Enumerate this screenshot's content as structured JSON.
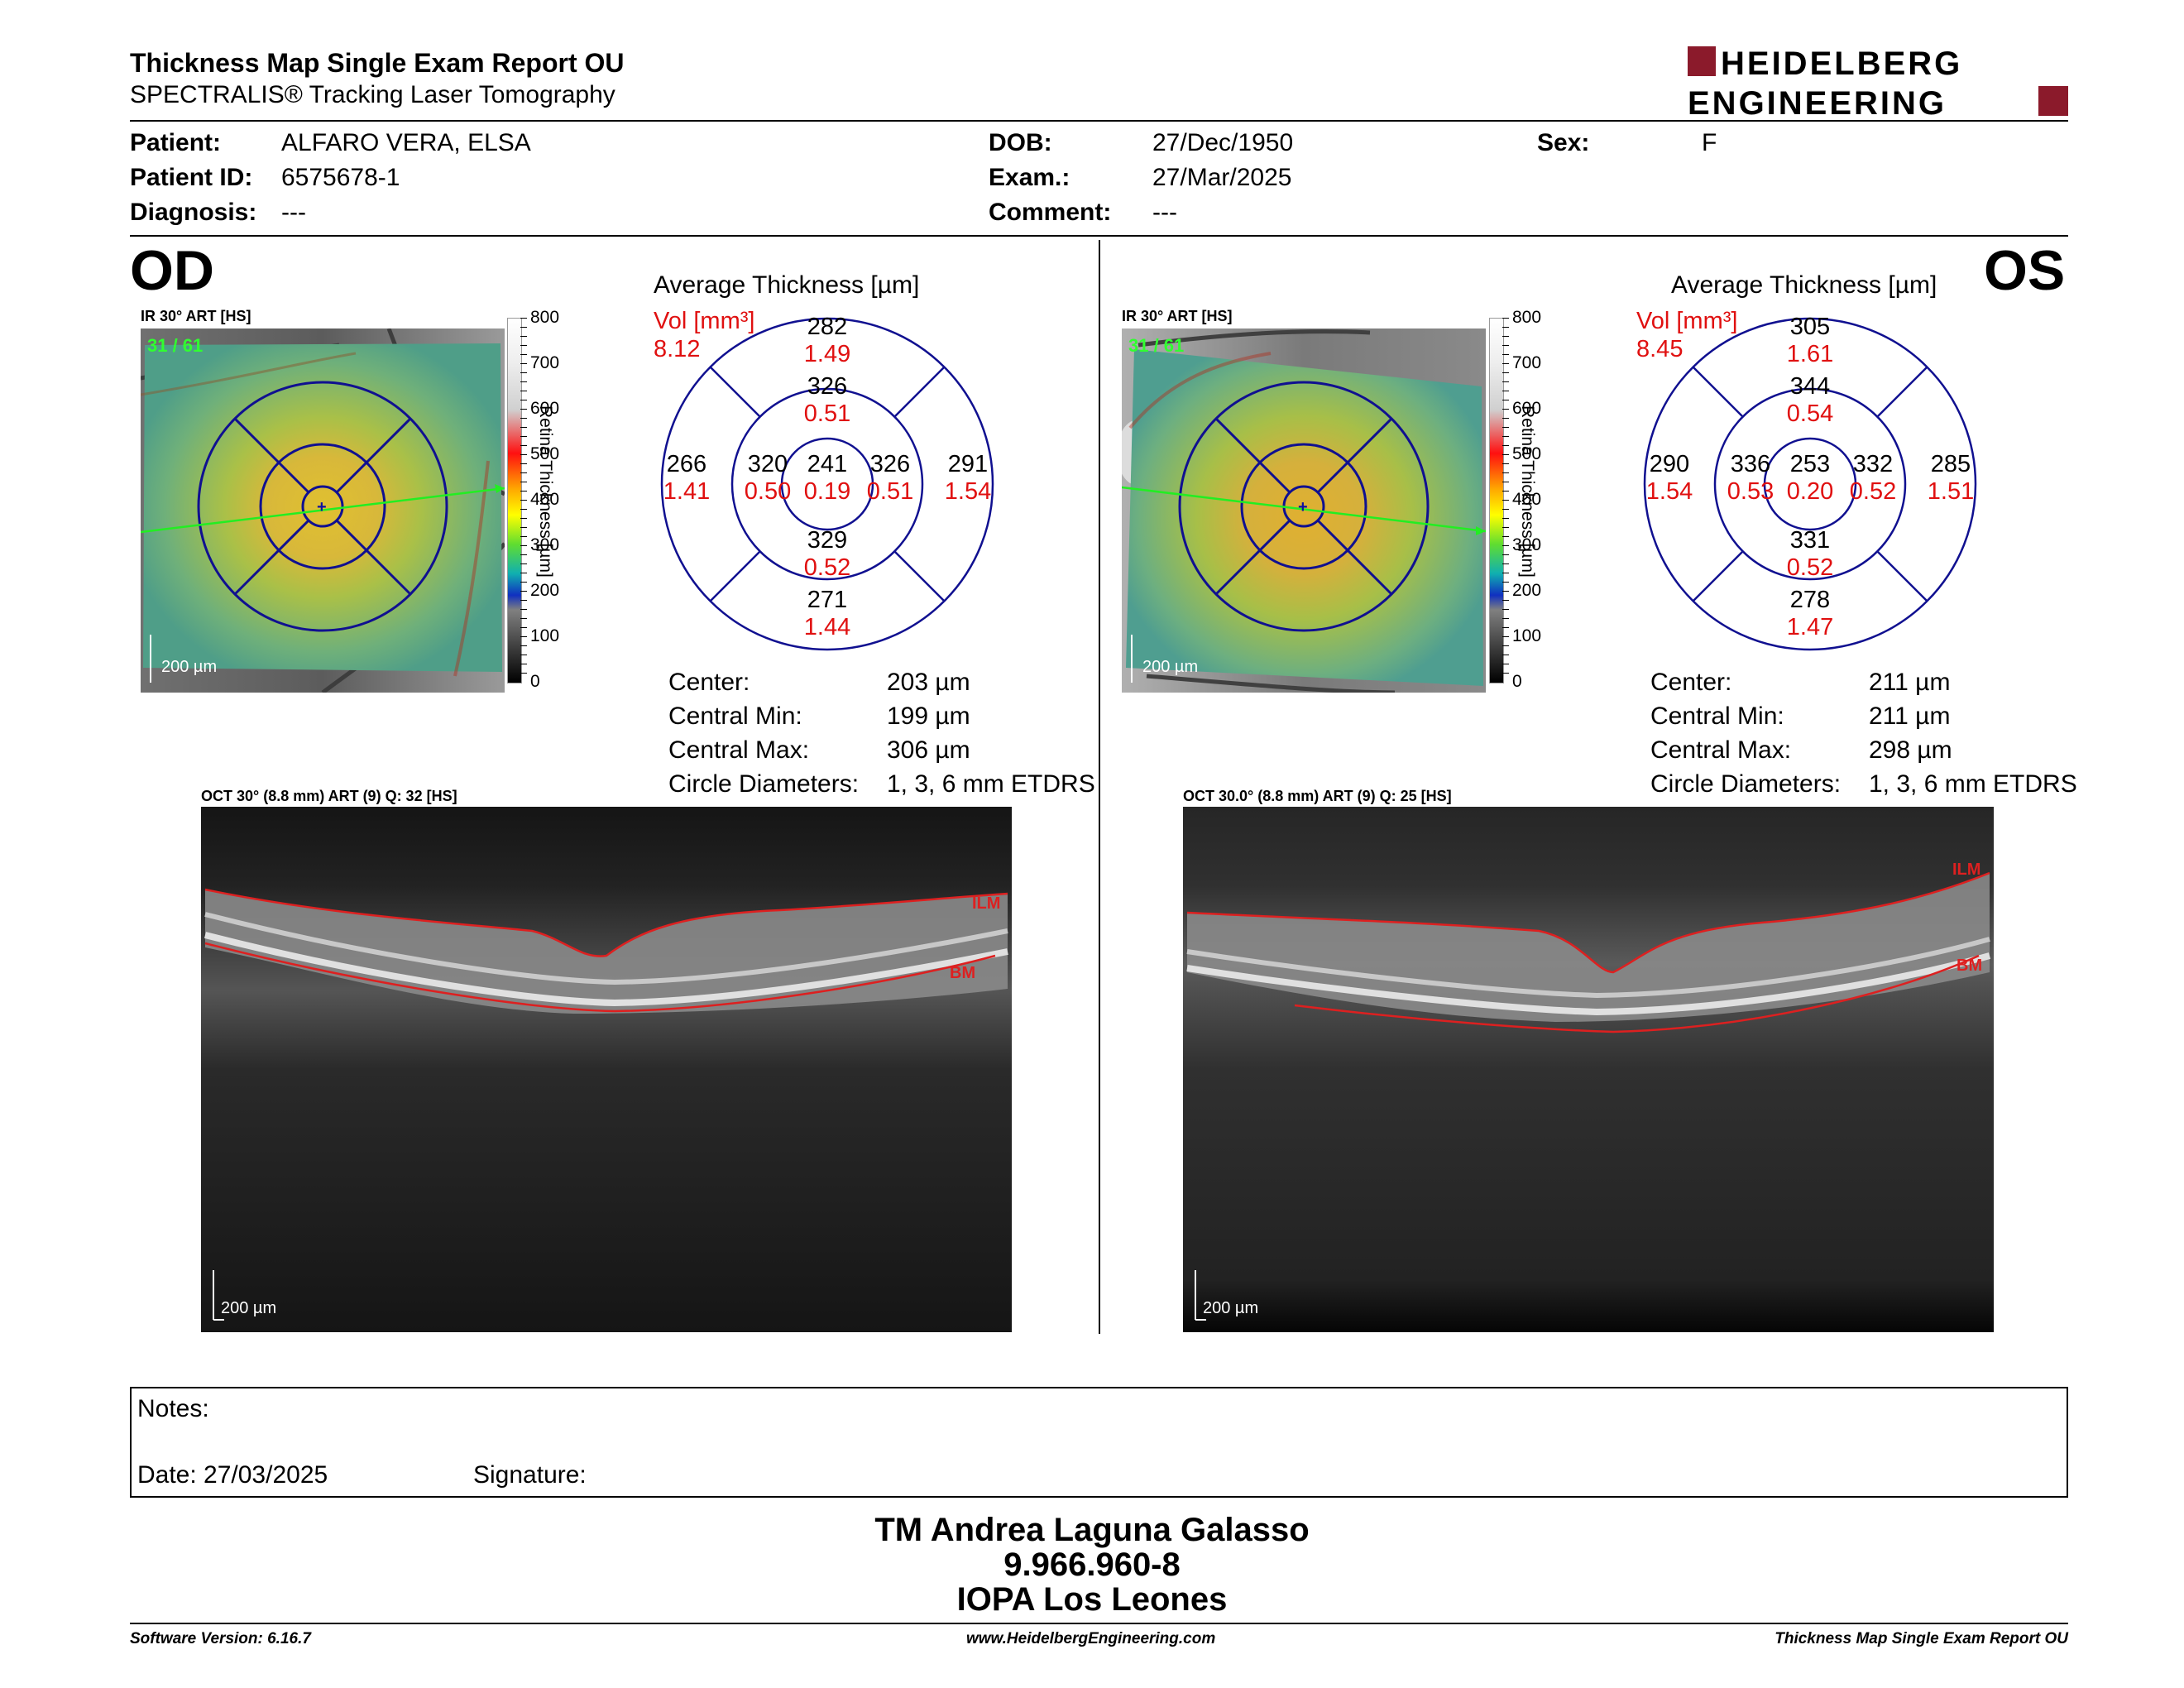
{
  "header": {
    "title": "Thickness Map Single Exam Report OU",
    "subtitle": "SPECTRALIS® Tracking Laser Tomography",
    "logo_line1": "HEIDELBERG",
    "logo_line2": "ENGINEERING",
    "brand_color": "#8b1a2b"
  },
  "patient": {
    "patient_label": "Patient:",
    "patient_value": "ALFARO VERA, ELSA",
    "id_label": "Patient ID:",
    "id_value": "6575678-1",
    "diag_label": "Diagnosis:",
    "diag_value": "---",
    "dob_label": "DOB:",
    "dob_value": "27/Dec/1950",
    "exam_label": "Exam.:",
    "exam_value": "27/Mar/2025",
    "comment_label": "Comment:",
    "comment_value": "---",
    "sex_label": "Sex:",
    "sex_value": "F"
  },
  "od": {
    "eye": "OD",
    "ir_caption": "IR 30° ART [HS]",
    "frames": "31 / 61",
    "scale": "200 µm",
    "colorbar_ticks": [
      "800",
      "700",
      "600",
      "500",
      "400",
      "300",
      "200",
      "100",
      "0"
    ],
    "colorbar_label": "Retina Thickness [µm]",
    "avg_title": "Average Thickness [µm]",
    "vol_label": "Vol [mm³]",
    "vol_value": "8.12",
    "grid": {
      "center": [
        "241",
        "0.19"
      ],
      "inner_sup": [
        "326",
        "0.51"
      ],
      "inner_inf": [
        "329",
        "0.52"
      ],
      "inner_left": [
        "320",
        "0.50"
      ],
      "inner_right": [
        "326",
        "0.51"
      ],
      "outer_sup": [
        "282",
        "1.49"
      ],
      "outer_inf": [
        "271",
        "1.44"
      ],
      "outer_left": [
        "266",
        "1.41"
      ],
      "outer_right": [
        "291",
        "1.54"
      ]
    },
    "stats": [
      {
        "label": "Center:",
        "value": "203 µm"
      },
      {
        "label": "Central Min:",
        "value": "199 µm"
      },
      {
        "label": "Central Max:",
        "value": "306 µm"
      },
      {
        "label": "Circle Diameters:",
        "value": "1, 3, 6 mm ETDRS"
      }
    ],
    "oct_caption": "OCT 30° (8.8 mm) ART (9) Q: 32 [HS]",
    "oct_scale": "200 µm",
    "ilm": "ILM",
    "bm": "BM"
  },
  "os": {
    "eye": "OS",
    "ir_caption": "IR 30° ART [HS]",
    "frames": "31 / 61",
    "scale": "200 µm",
    "colorbar_ticks": [
      "800",
      "700",
      "600",
      "500",
      "400",
      "300",
      "200",
      "100",
      "0"
    ],
    "colorbar_label": "Retina Thickness [µm]",
    "avg_title": "Average Thickness [µm]",
    "vol_label": "Vol [mm³]",
    "vol_value": "8.45",
    "grid": {
      "center": [
        "253",
        "0.20"
      ],
      "inner_sup": [
        "344",
        "0.54"
      ],
      "inner_inf": [
        "331",
        "0.52"
      ],
      "inner_left": [
        "336",
        "0.53"
      ],
      "inner_right": [
        "332",
        "0.52"
      ],
      "outer_sup": [
        "305",
        "1.61"
      ],
      "outer_inf": [
        "278",
        "1.47"
      ],
      "outer_left": [
        "290",
        "1.54"
      ],
      "outer_right": [
        "285",
        "1.51"
      ]
    },
    "stats": [
      {
        "label": "Center:",
        "value": "211 µm"
      },
      {
        "label": "Central Min:",
        "value": "211 µm"
      },
      {
        "label": "Central Max:",
        "value": "298 µm"
      },
      {
        "label": "Circle Diameters:",
        "value": "1, 3, 6 mm ETDRS"
      }
    ],
    "oct_caption": "OCT 30.0° (8.8 mm) ART (9) Q: 25 [HS]",
    "oct_scale": "200 µm",
    "ilm": "ILM",
    "bm": "BM"
  },
  "notes": {
    "notes_label": "Notes:",
    "date_label": "Date: 27/03/2025",
    "signature_label": "Signature:"
  },
  "signer": {
    "name": "TM Andrea Laguna Galasso",
    "id": "9.966.960-8",
    "org": "IOPA Los Leones"
  },
  "footer": {
    "version": "Software Version: 6.16.7",
    "website": "www.HeidelbergEngineering.com",
    "report": "Thickness Map Single Exam Report OU"
  }
}
